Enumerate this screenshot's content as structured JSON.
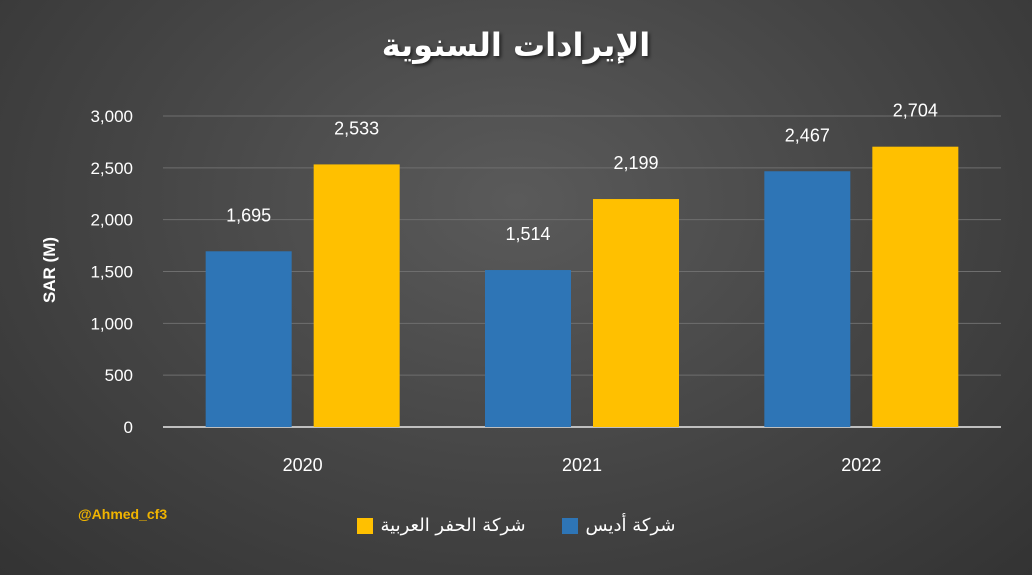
{
  "watermark": "@Ahmed_cf3",
  "chart_data": {
    "type": "bar",
    "title": "الإيرادات السنوية",
    "xlabel": "",
    "ylabel": "SAR (M)",
    "categories": [
      "2020",
      "2021",
      "2022"
    ],
    "series": [
      {
        "name": "شركة أديس",
        "values": [
          1695,
          1514,
          2467
        ],
        "labels": [
          "1,695",
          "1,514",
          "2,467"
        ],
        "color": "#2e75b6"
      },
      {
        "name": "شركة الحفر العربية",
        "values": [
          2533,
          2199,
          2704
        ],
        "labels": [
          "2,533",
          "2,199",
          "2,704"
        ],
        "color": "#ffc000"
      }
    ],
    "ylim": [
      0,
      3000
    ],
    "yticks": [
      0,
      500,
      1000,
      1500,
      2000,
      2500,
      3000
    ],
    "ytick_labels": [
      "0",
      "500",
      "1,000",
      "1,500",
      "2,000",
      "2,500",
      "3,000"
    ],
    "grid": true,
    "legend_position": "bottom",
    "legend_order": [
      1,
      0
    ]
  }
}
